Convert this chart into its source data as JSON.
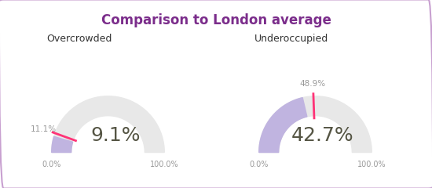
{
  "title": "Comparison to London average",
  "title_color": "#7B2D8B",
  "title_fontsize": 12,
  "background_color": "#FFFFFF",
  "border_color": "#C8A0D0",
  "gauges": [
    {
      "label": "Overcrowded",
      "value": 9.1,
      "london_avg": 11.1,
      "center_text": "9.1%",
      "london_label": "11.1%",
      "arc_bg_color": "#E8E8E8",
      "arc_fill_color": "#C0B4E0",
      "london_line_color": "#FF3377",
      "center_text_color": "#555544",
      "label_color": "#333333",
      "axis_label_color": "#999999",
      "max_val": 100,
      "left_label": "0.0%",
      "right_label": "100.0%"
    },
    {
      "label": "Underoccupied",
      "value": 42.7,
      "london_avg": 48.9,
      "center_text": "42.7%",
      "london_label": "48.9%",
      "arc_bg_color": "#E8E8E8",
      "arc_fill_color": "#C0B4E0",
      "london_line_color": "#FF3377",
      "center_text_color": "#555544",
      "label_color": "#333333",
      "axis_label_color": "#999999",
      "max_val": 100,
      "left_label": "0.0%",
      "right_label": "100.0%"
    }
  ]
}
